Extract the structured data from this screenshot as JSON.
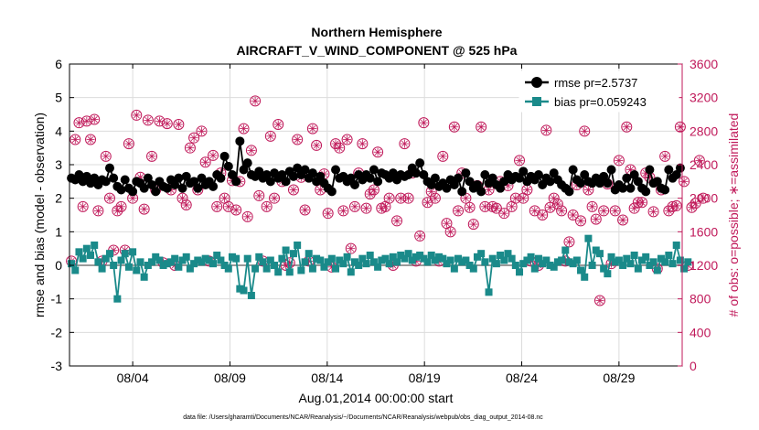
{
  "chart_data": {
    "type": "line",
    "title": "Northern Hemisphere",
    "subtitle": "AIRCRAFT_V_WIND_COMPONENT @ 525 hPa",
    "xlabel": "Aug.01,2014 00:00:00 start",
    "ylabel_left": "rmse and bias (model - observation)",
    "ylabel_right": "# of obs: o=possible; ∗=assimilated",
    "footer": "data file: /Users/gharamti/Documents/NCAR/Reanalysis/~/Documents/NCAR/Reanalysis/webpub/obs_diag_output_2014-08.nc",
    "xlim": [
      0.25,
      31.75
    ],
    "ylim_left": [
      -3,
      6
    ],
    "ylim_right": [
      0,
      3600
    ],
    "x_ticks": [
      3.5,
      8.5,
      13.5,
      18.5,
      23.5,
      28.5
    ],
    "x_tick_labels": [
      "08/04",
      "08/09",
      "08/14",
      "08/19",
      "08/24",
      "08/29"
    ],
    "y_ticks_left": [
      -3,
      -2,
      -1,
      0,
      1,
      2,
      3,
      4,
      5,
      6
    ],
    "y_ticks_right": [
      0,
      400,
      800,
      1200,
      1600,
      2000,
      2400,
      2800,
      3200,
      3600
    ],
    "grid": true,
    "legend_position": "top-right",
    "legend": [
      "rmse pr=2.5737",
      "bias pr=0.059243"
    ],
    "zero_line_color": "#9a9a9a",
    "colors": {
      "rmse": "#000000",
      "bias": "#1a8a8a",
      "obs": "#c0195a",
      "grid": "#dcdcdc",
      "axis": "#000000"
    },
    "series": [
      {
        "name": "rmse pr=2.5737",
        "values": [
          2.6,
          2.55,
          2.7,
          2.5,
          2.65,
          2.45,
          2.6,
          2.4,
          2.55,
          2.5,
          2.9,
          2.6,
          2.35,
          2.25,
          2.55,
          2.3,
          2.2,
          2.5,
          2.45,
          2.3,
          2.6,
          2.4,
          2.2,
          2.5,
          2.35,
          2.3,
          2.55,
          2.4,
          2.6,
          2.3,
          2.65,
          2.45,
          2.5,
          2.3,
          2.6,
          2.4,
          2.5,
          2.35,
          2.7,
          2.6,
          3.25,
          2.95,
          2.7,
          2.5,
          3.7,
          2.85,
          3.05,
          2.7,
          2.65,
          2.8,
          2.6,
          2.7,
          2.5,
          2.75,
          2.6,
          2.7,
          2.5,
          2.8,
          2.65,
          2.9,
          2.7,
          2.85,
          2.6,
          2.75,
          2.5,
          2.65,
          2.45,
          2.3,
          2.2,
          2.85,
          2.6,
          2.65,
          2.5,
          2.6,
          2.4,
          2.7,
          2.55,
          2.7,
          2.6,
          2.85,
          2.5,
          2.75,
          2.7,
          2.6,
          2.75,
          2.55,
          2.7,
          2.65,
          2.7,
          2.9,
          2.75,
          3.05,
          2.7,
          2.5,
          2.4,
          2.6,
          2.35,
          2.45,
          2.3,
          2.55,
          2.4,
          2.6,
          2.2,
          2.75,
          2.5,
          2.3,
          2.4,
          2.2,
          2.7,
          2.45,
          2.6,
          2.4,
          2.3,
          2.5,
          2.7,
          2.55,
          2.65,
          2.6,
          2.8,
          2.5,
          2.65,
          2.55,
          2.7,
          2.4,
          2.6,
          2.5,
          2.75,
          2.55,
          2.4,
          2.3,
          2.2,
          2.85,
          2.55,
          2.45,
          2.7,
          2.5,
          2.45,
          2.6,
          2.45,
          2.65,
          2.45,
          2.85,
          2.25,
          2.4,
          2.3,
          2.6,
          2.3,
          2.7,
          2.5,
          2.3,
          2.2,
          2.85,
          2.45,
          2.5,
          2.3,
          2.25,
          2.85,
          2.6,
          2.7,
          2.9
        ]
      },
      {
        "name": "bias pr=0.059243",
        "values": [
          0.05,
          -0.15,
          0.4,
          0.2,
          0.5,
          0.3,
          0.6,
          0.1,
          -0.1,
          0.2,
          0.35,
          0.0,
          -1.0,
          0.15,
          0.35,
          -0.05,
          0.4,
          -0.15,
          0.1,
          -0.35,
          0.0,
          0.1,
          0.25,
          0.15,
          0.0,
          0.05,
          0.1,
          0.2,
          -0.05,
          0.15,
          0.25,
          -0.1,
          0.05,
          0.15,
          0.1,
          0.2,
          0.15,
          0.05,
          0.3,
          0.15,
          0.0,
          -0.1,
          0.25,
          0.2,
          -0.7,
          -0.75,
          0.2,
          -0.9,
          -0.1,
          0.25,
          0.1,
          -0.1,
          0.15,
          0.0,
          -0.2,
          0.2,
          0.45,
          -0.2,
          0.35,
          0.6,
          -0.15,
          0.1,
          0.35,
          -0.1,
          0.2,
          0.15,
          -0.05,
          0.1,
          0.2,
          -0.1,
          0.15,
          0.05,
          0.25,
          -0.2,
          0.1,
          0.0,
          0.2,
          0.05,
          0.3,
          0.1,
          -0.05,
          0.15,
          0.2,
          0.05,
          0.25,
          0.1,
          0.3,
          0.2,
          0.35,
          0.15,
          0.25,
          0.3,
          0.2,
          0.1,
          0.3,
          0.15,
          0.25,
          0.2,
          0.05,
          0.15,
          -0.1,
          0.2,
          0.1,
          0.15,
          0.0,
          -0.1,
          0.25,
          0.35,
          0.1,
          -0.8,
          0.2,
          0.05,
          0.3,
          0.15,
          0.35,
          0.2,
          0.0,
          -0.2,
          0.05,
          0.15,
          0.25,
          -0.1,
          0.2,
          0.05,
          0.15,
          0.0,
          -0.05,
          0.1,
          0.15,
          0.45,
          0.1,
          0.05,
          0.15,
          -0.15,
          -0.35,
          0.8,
          0.0,
          0.45,
          0.35,
          -0.1,
          -0.25,
          0.25,
          0.1,
          0.15,
          0.0,
          0.2,
          0.05,
          0.3,
          -0.1,
          0.15,
          0.25,
          0.0,
          0.1,
          -0.15,
          0.2,
          0.1,
          0.3,
          0.05,
          0.6,
          0.15,
          -0.1,
          0.1
        ]
      },
      {
        "name": "# of obs possible",
        "values": [
          1250,
          2700,
          2900,
          1900,
          2920,
          2700,
          2940,
          1850,
          1250,
          2500,
          2000,
          1380,
          1850,
          1900,
          1380,
          2650,
          2000,
          2990,
          2250,
          1870,
          2930,
          2500,
          2100,
          2920,
          1230,
          2890,
          2100,
          1200,
          2880,
          2000,
          1920,
          2600,
          2720,
          2100,
          2800,
          2430,
          1250,
          2510,
          1900,
          2300,
          2000,
          1900,
          2210,
          1860,
          2200,
          2830,
          1780,
          2570,
          3160,
          2030,
          1250,
          1900,
          2740,
          2000,
          2880,
          2200,
          1200,
          1230,
          2100,
          2700,
          2250,
          1860,
          1250,
          2830,
          2630,
          2100,
          2290,
          1820,
          1180,
          2650,
          2600,
          1850,
          2700,
          1400,
          1900,
          2300,
          2650,
          1880,
          2050,
          2100,
          2550,
          1880,
          1900,
          2000,
          1200,
          1730,
          2000,
          2650,
          2000,
          2300,
          1250,
          1550,
          2900,
          1950,
          2080,
          2000,
          1250,
          2500,
          1700,
          1600,
          2850,
          1850,
          2300,
          2000,
          1890,
          1690,
          2150,
          2850,
          1900,
          2100,
          1900,
          1880,
          2200,
          1820,
          2150,
          1900,
          2000,
          2450,
          2000,
          2100,
          1250,
          1850,
          1200,
          1800,
          2810,
          1890,
          2000,
          1930,
          1850,
          1250,
          1480,
          1800,
          2160,
          1730,
          2800,
          2100,
          1900,
          1750,
          780,
          1850,
          2170,
          1220,
          1850,
          2450,
          1740,
          2850,
          2340,
          1880,
          1950,
          1950,
          2300,
          2250,
          1840,
          1160,
          2100,
          2500,
          1850,
          1900,
          1910,
          2850,
          2200,
          1200,
          1890,
          1940,
          2450,
          2000
        ]
      }
    ]
  }
}
